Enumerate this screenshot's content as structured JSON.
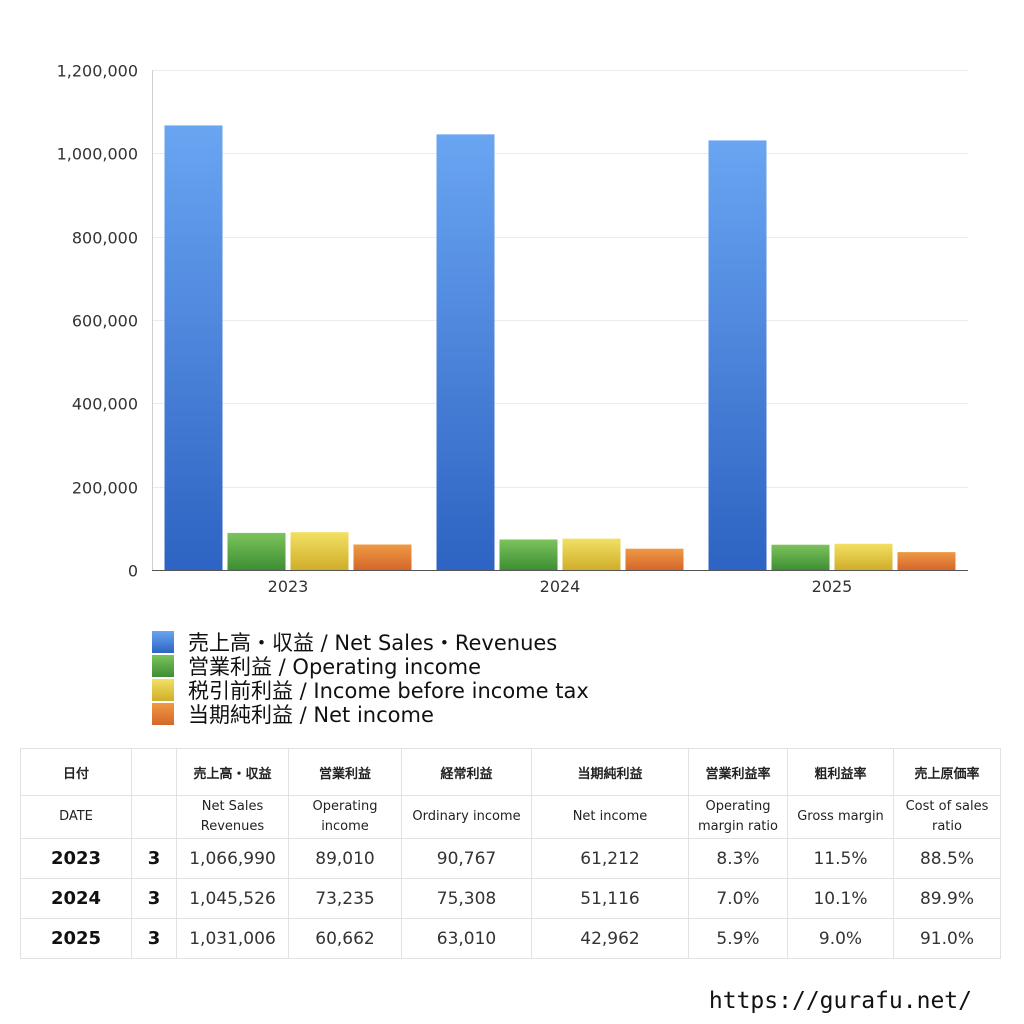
{
  "chart_data": {
    "type": "bar",
    "title": "",
    "xlabel": "",
    "ylabel": "",
    "categories": [
      "2023",
      "2024",
      "2025"
    ],
    "ylim": [
      0,
      1200000
    ],
    "yticks": [
      0,
      200000,
      400000,
      600000,
      800000,
      1000000,
      1200000
    ],
    "ytick_labels": [
      "0",
      "200,000",
      "400,000",
      "600,000",
      "800,000",
      "1,000,000",
      "1,200,000"
    ],
    "grid": true,
    "legend_position": "bottom-left",
    "series": [
      {
        "name": "売上高・収益 / Net Sales・Revenues",
        "values": [
          1066990,
          1045526,
          1031006
        ],
        "color_top": "#6aa5f2",
        "color_bottom": "#2d63c2"
      },
      {
        "name": "営業利益 / Operating income",
        "values": [
          89010,
          73235,
          60662
        ],
        "color_top": "#7cc35c",
        "color_bottom": "#3d8e33"
      },
      {
        "name": "税引前利益 / Income before income tax",
        "values": [
          90767,
          75308,
          63010
        ],
        "color_top": "#f2e063",
        "color_bottom": "#cfae2a"
      },
      {
        "name": "当期純利益 / Net income",
        "values": [
          61212,
          51116,
          42962
        ],
        "color_top": "#ee9a45",
        "color_bottom": "#d5662a"
      }
    ]
  },
  "legend_colors": [
    "#3f80dc",
    "#4f9e3d",
    "#e2c940",
    "#e27f35"
  ],
  "table": {
    "header_jp": [
      "日付",
      "",
      "売上高・収益",
      "営業利益",
      "経常利益",
      "当期純利益",
      "営業利益率",
      "粗利益率",
      "売上原価率"
    ],
    "header_en": [
      "DATE",
      "",
      "Net Sales\nRevenues",
      "Operating\nincome",
      "Ordinary income",
      "Net income",
      "Operating\nmargin ratio",
      "Gross margin",
      "Cost of sales\nratio"
    ],
    "rows": [
      [
        "2023",
        "3",
        "1,066,990",
        "89,010",
        "90,767",
        "61,212",
        "8.3%",
        "11.5%",
        "88.5%"
      ],
      [
        "2024",
        "3",
        "1,045,526",
        "73,235",
        "75,308",
        "51,116",
        "7.0%",
        "10.1%",
        "89.9%"
      ],
      [
        "2025",
        "3",
        "1,031,006",
        "60,662",
        "63,010",
        "42,962",
        "5.9%",
        "9.0%",
        "91.0%"
      ]
    ]
  },
  "footer": {
    "url": "https://gurafu.net/"
  }
}
